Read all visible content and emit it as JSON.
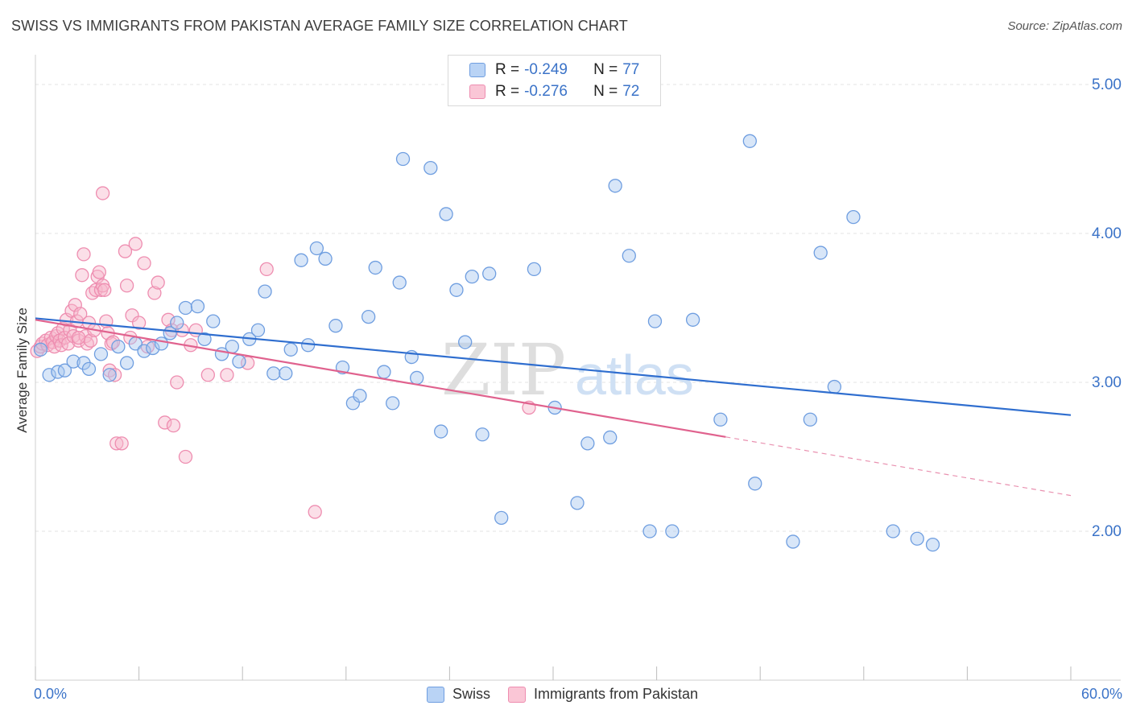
{
  "header": {
    "title": "SWISS VS IMMIGRANTS FROM PAKISTAN AVERAGE FAMILY SIZE CORRELATION CHART",
    "source": "Source: ZipAtlas.com"
  },
  "legend": {
    "swiss": {
      "r_label": "R =",
      "r_value": "-0.249",
      "n_label": "N =",
      "n_value": "77"
    },
    "pakistan": {
      "r_label": "R =",
      "r_value": "-0.276",
      "n_label": "N =",
      "n_value": "72"
    }
  },
  "watermark": {
    "zip": "ZIP",
    "atlas": "atlas"
  },
  "colors": {
    "swiss_fill": "#a9c8f0",
    "swiss_stroke": "#6f9ee0",
    "swiss_line": "#2f6ecf",
    "pakistan_fill": "#f7b8cc",
    "pakistan_stroke": "#ee8db0",
    "pakistan_line": "#e0628e",
    "grid": "#e3e3e3",
    "tick_text": "#3b73c8"
  },
  "chart_data": {
    "type": "scatter",
    "ylabel": "Average Family Size",
    "xlim": [
      0,
      60
    ],
    "ylim": [
      1.0,
      5.2
    ],
    "x_tick_labels": [
      "0.0%",
      "60.0%"
    ],
    "y_ticks": [
      2.0,
      3.0,
      4.0,
      5.0
    ],
    "y_tick_labels": [
      "2.00",
      "3.00",
      "4.00",
      "5.00"
    ],
    "grid": true,
    "legend_position": "top-center",
    "series": [
      {
        "name": "Swiss",
        "trend": {
          "x": [
            0,
            60
          ],
          "y": [
            3.43,
            2.78
          ],
          "dashed_from": null
        },
        "points": [
          [
            0.3,
            3.22
          ],
          [
            0.8,
            3.05
          ],
          [
            1.3,
            3.07
          ],
          [
            1.7,
            3.08
          ],
          [
            2.2,
            3.14
          ],
          [
            2.8,
            3.13
          ],
          [
            3.1,
            3.09
          ],
          [
            3.8,
            3.19
          ],
          [
            4.3,
            3.05
          ],
          [
            4.8,
            3.24
          ],
          [
            5.3,
            3.13
          ],
          [
            5.8,
            3.26
          ],
          [
            6.3,
            3.21
          ],
          [
            6.8,
            3.23
          ],
          [
            7.3,
            3.26
          ],
          [
            7.8,
            3.33
          ],
          [
            8.2,
            3.4
          ],
          [
            8.7,
            3.5
          ],
          [
            9.4,
            3.51
          ],
          [
            9.8,
            3.29
          ],
          [
            10.3,
            3.41
          ],
          [
            10.8,
            3.19
          ],
          [
            11.4,
            3.24
          ],
          [
            11.8,
            3.14
          ],
          [
            12.4,
            3.29
          ],
          [
            12.9,
            3.35
          ],
          [
            13.3,
            3.61
          ],
          [
            13.8,
            3.06
          ],
          [
            14.5,
            3.06
          ],
          [
            14.8,
            3.22
          ],
          [
            15.4,
            3.82
          ],
          [
            15.8,
            3.25
          ],
          [
            16.3,
            3.9
          ],
          [
            16.8,
            3.83
          ],
          [
            17.4,
            3.38
          ],
          [
            17.8,
            3.1
          ],
          [
            18.4,
            2.86
          ],
          [
            18.8,
            2.91
          ],
          [
            19.3,
            3.44
          ],
          [
            19.7,
            3.77
          ],
          [
            20.2,
            3.07
          ],
          [
            20.7,
            2.86
          ],
          [
            21.1,
            3.67
          ],
          [
            21.3,
            4.5
          ],
          [
            21.8,
            3.17
          ],
          [
            22.1,
            3.03
          ],
          [
            22.9,
            4.44
          ],
          [
            23.5,
            2.67
          ],
          [
            23.8,
            4.13
          ],
          [
            24.4,
            3.62
          ],
          [
            24.9,
            3.27
          ],
          [
            25.3,
            3.71
          ],
          [
            25.9,
            2.65
          ],
          [
            26.3,
            3.73
          ],
          [
            27.0,
            2.09
          ],
          [
            28.9,
            3.76
          ],
          [
            30.1,
            2.83
          ],
          [
            31.4,
            2.19
          ],
          [
            32.0,
            2.59
          ],
          [
            33.3,
            2.63
          ],
          [
            33.6,
            4.32
          ],
          [
            34.4,
            3.85
          ],
          [
            35.6,
            2.0
          ],
          [
            35.9,
            3.41
          ],
          [
            36.9,
            2.0
          ],
          [
            38.1,
            3.42
          ],
          [
            39.7,
            2.75
          ],
          [
            41.4,
            4.62
          ],
          [
            41.7,
            2.32
          ],
          [
            43.9,
            1.93
          ],
          [
            44.9,
            2.75
          ],
          [
            45.5,
            3.87
          ],
          [
            46.3,
            2.97
          ],
          [
            47.4,
            4.11
          ],
          [
            49.7,
            2.0
          ],
          [
            51.1,
            1.95
          ],
          [
            52.0,
            1.91
          ]
        ]
      },
      {
        "name": "Immigrants from Pakistan",
        "trend": {
          "x": [
            0,
            60
          ],
          "y": [
            3.42,
            2.24
          ],
          "dashed_from": 40
        },
        "points": [
          [
            0.1,
            3.21
          ],
          [
            0.3,
            3.24
          ],
          [
            0.4,
            3.26
          ],
          [
            0.6,
            3.28
          ],
          [
            0.7,
            3.25
          ],
          [
            0.9,
            3.3
          ],
          [
            1.0,
            3.27
          ],
          [
            1.1,
            3.24
          ],
          [
            1.2,
            3.31
          ],
          [
            1.3,
            3.33
          ],
          [
            1.4,
            3.28
          ],
          [
            1.5,
            3.25
          ],
          [
            1.6,
            3.36
          ],
          [
            1.7,
            3.3
          ],
          [
            1.8,
            3.42
          ],
          [
            1.9,
            3.26
          ],
          [
            2.0,
            3.35
          ],
          [
            2.1,
            3.48
          ],
          [
            2.2,
            3.31
          ],
          [
            2.3,
            3.52
          ],
          [
            2.4,
            3.41
          ],
          [
            2.5,
            3.28
          ],
          [
            2.6,
            3.46
          ],
          [
            2.7,
            3.72
          ],
          [
            2.8,
            3.86
          ],
          [
            2.9,
            3.31
          ],
          [
            3.0,
            3.26
          ],
          [
            3.1,
            3.4
          ],
          [
            3.2,
            3.28
          ],
          [
            3.3,
            3.6
          ],
          [
            3.4,
            3.35
          ],
          [
            3.5,
            3.62
          ],
          [
            3.6,
            3.71
          ],
          [
            3.7,
            3.74
          ],
          [
            3.8,
            3.62
          ],
          [
            3.9,
            3.65
          ],
          [
            4.0,
            3.62
          ],
          [
            4.1,
            3.41
          ],
          [
            4.2,
            3.33
          ],
          [
            4.3,
            3.08
          ],
          [
            4.4,
            3.26
          ],
          [
            4.5,
            3.27
          ],
          [
            4.6,
            3.05
          ],
          [
            4.7,
            2.59
          ],
          [
            5.0,
            2.59
          ],
          [
            5.2,
            3.88
          ],
          [
            5.3,
            3.65
          ],
          [
            5.5,
            3.3
          ],
          [
            5.6,
            3.45
          ],
          [
            5.8,
            3.93
          ],
          [
            6.0,
            3.4
          ],
          [
            6.3,
            3.8
          ],
          [
            6.5,
            3.24
          ],
          [
            6.9,
            3.6
          ],
          [
            7.1,
            3.67
          ],
          [
            7.5,
            2.73
          ],
          [
            7.7,
            3.42
          ],
          [
            7.9,
            3.35
          ],
          [
            8.0,
            2.71
          ],
          [
            8.2,
            3.0
          ],
          [
            8.5,
            3.35
          ],
          [
            8.7,
            2.5
          ],
          [
            9.0,
            3.25
          ],
          [
            9.3,
            3.35
          ],
          [
            10.0,
            3.05
          ],
          [
            11.1,
            3.05
          ],
          [
            12.3,
            3.13
          ],
          [
            13.4,
            3.76
          ],
          [
            16.2,
            2.13
          ],
          [
            28.6,
            2.83
          ],
          [
            3.9,
            4.27
          ],
          [
            2.5,
            3.3
          ]
        ]
      }
    ]
  }
}
